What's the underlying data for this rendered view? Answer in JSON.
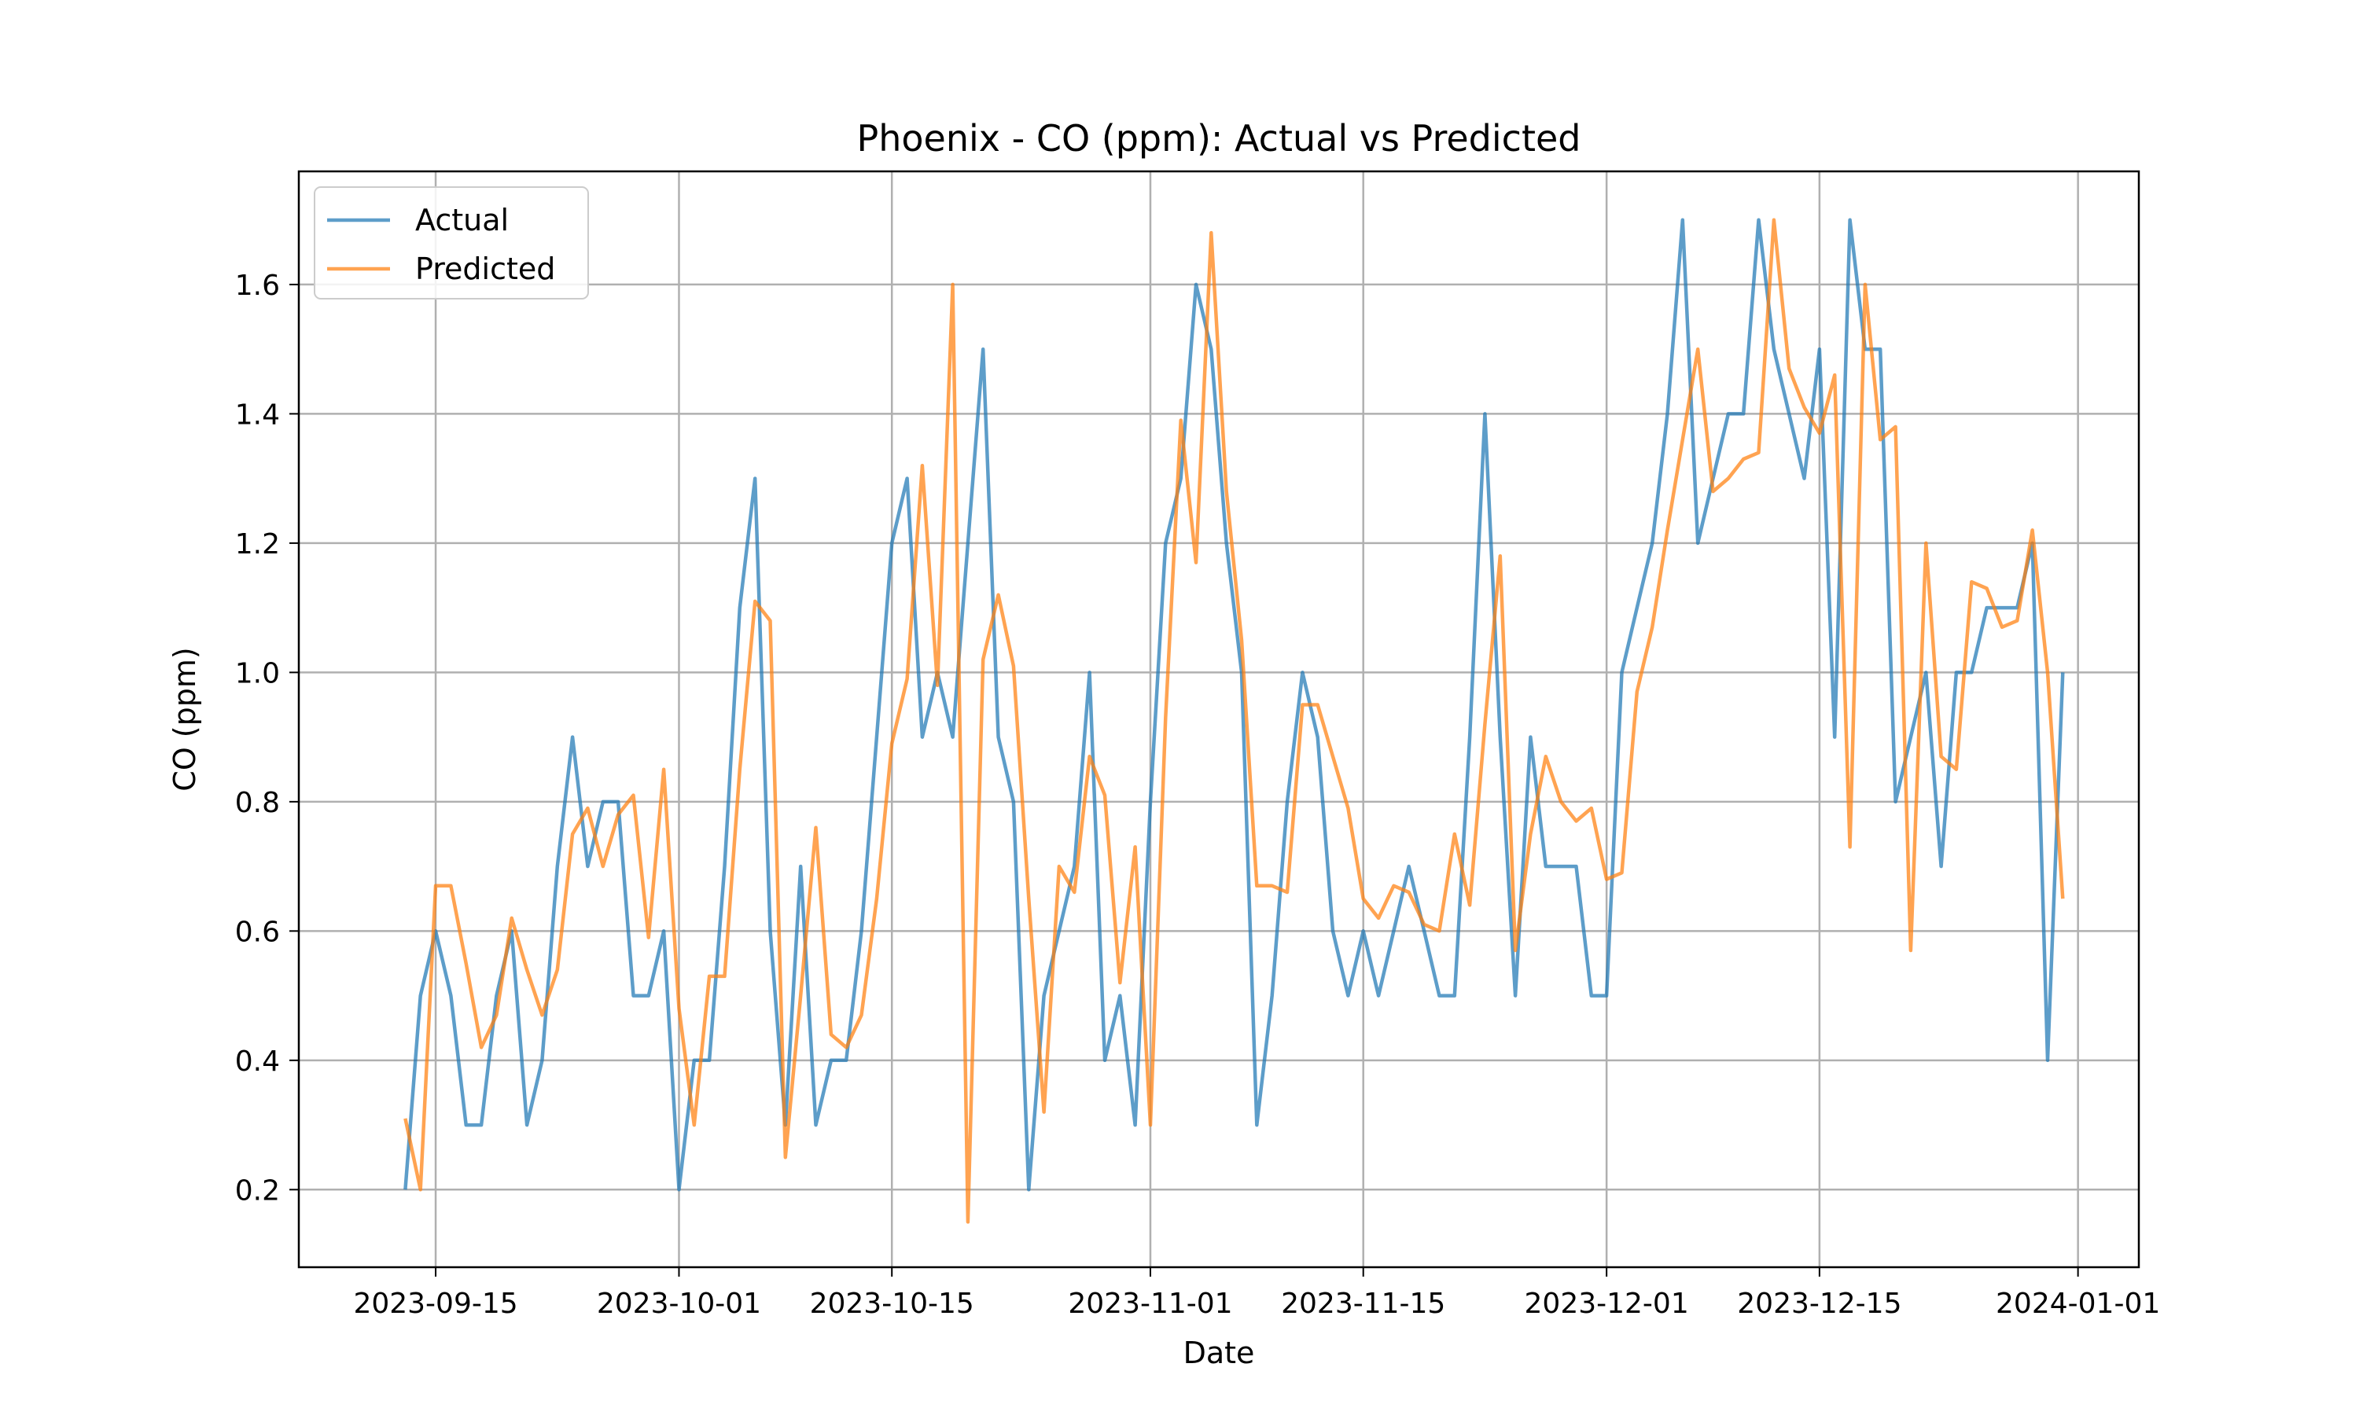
{
  "chart_data": {
    "type": "line",
    "title": "Phoenix - CO (ppm): Actual vs Predicted",
    "xlabel": "Date",
    "ylabel": "CO (ppm)",
    "x_start": "2023-09-13",
    "x_step_days": 1,
    "x_ticks": [
      "2023-09-15",
      "2023-10-01",
      "2023-10-15",
      "2023-11-01",
      "2023-11-15",
      "2023-12-01",
      "2023-12-15",
      "2024-01-01"
    ],
    "xlim": [
      "2023-09-06",
      "2024-01-05"
    ],
    "y_ticks": [
      0.2,
      0.4,
      0.6,
      0.8,
      1.0,
      1.2,
      1.4,
      1.6
    ],
    "y_tick_labels": [
      "0.2",
      "0.4",
      "0.6",
      "0.8",
      "1.0",
      "1.2",
      "1.4",
      "1.6"
    ],
    "ylim": [
      0.08,
      1.775
    ],
    "grid": true,
    "legend_position": "upper-left",
    "series": [
      {
        "name": "Actual",
        "color": "#1f77b4",
        "values": [
          0.2,
          0.5,
          0.6,
          0.5,
          0.3,
          0.3,
          0.5,
          0.6,
          0.3,
          0.4,
          0.7,
          0.9,
          0.7,
          0.8,
          0.8,
          0.5,
          0.5,
          0.6,
          0.2,
          0.4,
          0.4,
          0.7,
          1.1,
          1.3,
          0.6,
          0.3,
          0.7,
          0.3,
          0.4,
          0.4,
          0.6,
          0.9,
          1.2,
          1.3,
          0.9,
          1.0,
          0.9,
          1.2,
          1.5,
          0.9,
          0.8,
          0.2,
          0.5,
          0.6,
          0.7,
          1.0,
          0.4,
          0.5,
          0.3,
          0.8,
          1.2,
          1.3,
          1.6,
          1.5,
          1.2,
          1.0,
          0.3,
          0.5,
          0.8,
          1.0,
          0.9,
          0.6,
          0.5,
          0.6,
          0.5,
          0.6,
          0.7,
          0.6,
          0.5,
          0.5,
          0.9,
          1.4,
          0.9,
          0.5,
          0.9,
          0.7,
          0.7,
          0.7,
          0.5,
          0.5,
          1.0,
          1.1,
          1.2,
          1.4,
          1.7,
          1.2,
          1.3,
          1.4,
          1.4,
          1.7,
          1.5,
          1.4,
          1.3,
          1.5,
          0.9,
          1.7,
          1.5,
          1.5,
          0.8,
          0.9,
          1.0,
          0.7,
          1.0,
          1.0,
          1.1,
          1.1,
          1.1,
          1.2,
          0.4,
          1.0
        ]
      },
      {
        "name": "Predicted",
        "color": "#ff7f0e",
        "values": [
          0.31,
          0.2,
          0.67,
          0.67,
          0.55,
          0.42,
          0.47,
          0.62,
          0.54,
          0.47,
          0.54,
          0.75,
          0.79,
          0.7,
          0.78,
          0.81,
          0.59,
          0.85,
          0.48,
          0.3,
          0.53,
          0.53,
          0.85,
          1.11,
          1.08,
          0.25,
          0.5,
          0.76,
          0.44,
          0.42,
          0.47,
          0.65,
          0.89,
          0.99,
          1.32,
          0.98,
          1.6,
          0.15,
          1.02,
          1.12,
          1.01,
          0.65,
          0.32,
          0.7,
          0.66,
          0.87,
          0.81,
          0.52,
          0.73,
          0.3,
          0.93,
          1.39,
          1.17,
          1.68,
          1.28,
          1.05,
          0.67,
          0.67,
          0.66,
          0.95,
          0.95,
          0.87,
          0.79,
          0.65,
          0.62,
          0.67,
          0.66,
          0.61,
          0.6,
          0.75,
          0.64,
          0.92,
          1.18,
          0.57,
          0.75,
          0.87,
          0.8,
          0.77,
          0.79,
          0.68,
          0.69,
          0.97,
          1.07,
          1.22,
          1.36,
          1.5,
          1.28,
          1.3,
          1.33,
          1.34,
          1.7,
          1.47,
          1.41,
          1.37,
          1.46,
          0.73,
          1.6,
          1.36,
          1.38,
          0.57,
          1.2,
          0.87,
          0.85,
          1.14,
          1.13,
          1.07,
          1.08,
          1.22,
          1.0,
          0.65
        ]
      }
    ]
  }
}
